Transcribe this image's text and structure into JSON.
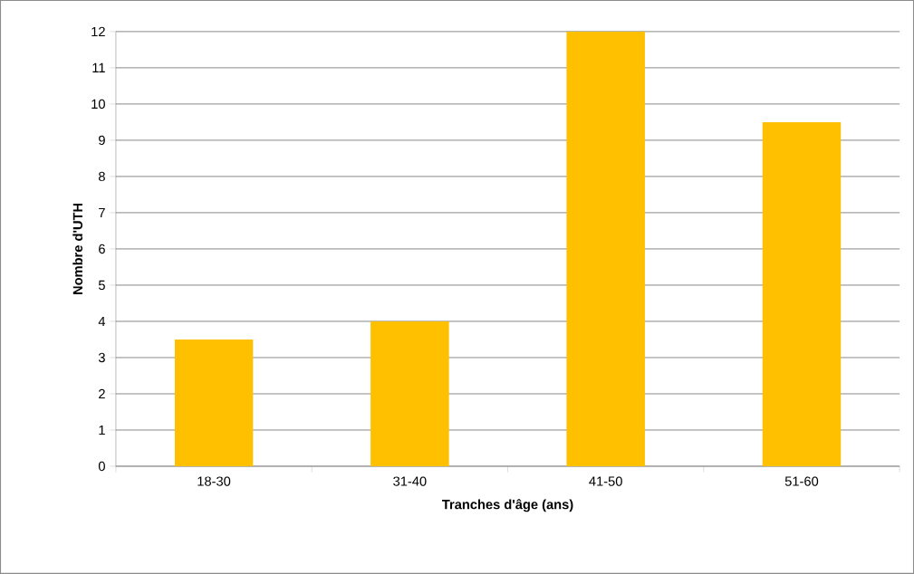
{
  "chart_data": {
    "type": "bar",
    "xlabel": "Tranches d'âge (ans)",
    "ylabel": "Nombre d'UTH",
    "categories": [
      "18-30",
      "31-40",
      "41-50",
      "51-60"
    ],
    "values": [
      3.5,
      4,
      12,
      9.5
    ],
    "color": "#ffc000",
    "ylim": [
      0,
      12
    ],
    "yticks": [
      0,
      1,
      2,
      3,
      4,
      5,
      6,
      7,
      8,
      9,
      10,
      11,
      12
    ],
    "grid": "y"
  }
}
